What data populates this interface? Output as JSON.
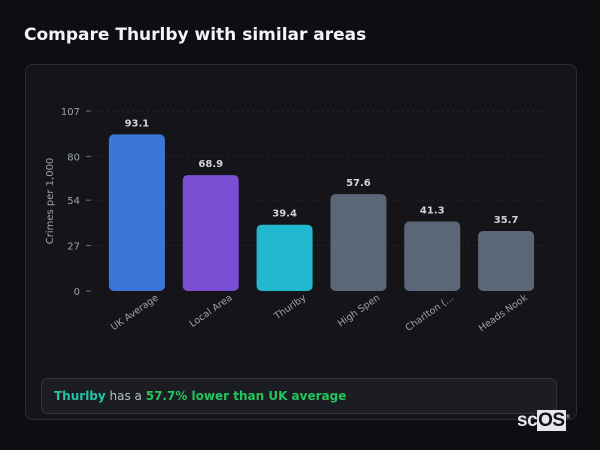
{
  "title": "Compare Thurlby with similar areas",
  "chart_data": {
    "type": "bar",
    "categories": [
      "UK Average",
      "Local Area",
      "Thurlby",
      "High Spen",
      "Charlton (...",
      "Heads Nook"
    ],
    "values": [
      93.1,
      68.9,
      39.4,
      57.6,
      41.3,
      35.7
    ],
    "value_labels": [
      "93.1",
      "68.9",
      "39.4",
      "57.6",
      "41.3",
      "35.7"
    ],
    "colors": [
      "#3b76d9",
      "#7b4fd4",
      "#22b8cf",
      "#5b6678",
      "#5b6678",
      "#5b6678"
    ],
    "ylabel": "Crimes per 1,000",
    "xlabel": "",
    "ylim": [
      0,
      107
    ],
    "yticks": [
      0,
      27,
      54,
      80,
      107
    ],
    "grid": true
  },
  "footer": {
    "area": "Thurlby",
    "middle": " has a ",
    "comparison": "57.7% lower than UK average"
  },
  "logo": "scOS"
}
